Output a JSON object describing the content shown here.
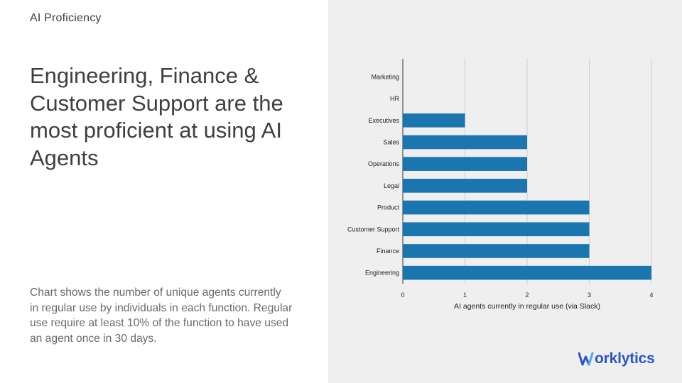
{
  "slide": {
    "eyebrow": "AI Proficiency",
    "headline": "Engineering, Finance & Customer Support are the most proficient at using AI Agents",
    "description": "Chart shows the number of unique agents currently in regular use by individuals in each function. Regular use require at least 10% of the function to have used an agent once in 30 days."
  },
  "logo": {
    "text": "orklytics",
    "icon": "worklytics-w-mark",
    "color": "#2a56c6"
  },
  "chart_data": {
    "type": "bar",
    "orientation": "horizontal",
    "categories": [
      "Marketing",
      "HR",
      "Executives",
      "Sales",
      "Operations",
      "Legal",
      "Product",
      "Customer Support",
      "Finance",
      "Engineering"
    ],
    "values": [
      0,
      0,
      1,
      2,
      2,
      2,
      3,
      3,
      3,
      4
    ],
    "xlabel": "AI agents currently in regular use (via Slack)",
    "ylabel": "",
    "xlim": [
      0,
      4
    ],
    "xticks": [
      "0",
      "1",
      "2",
      "3",
      "4"
    ],
    "grid": true,
    "bar_color": "#1b76b0"
  }
}
